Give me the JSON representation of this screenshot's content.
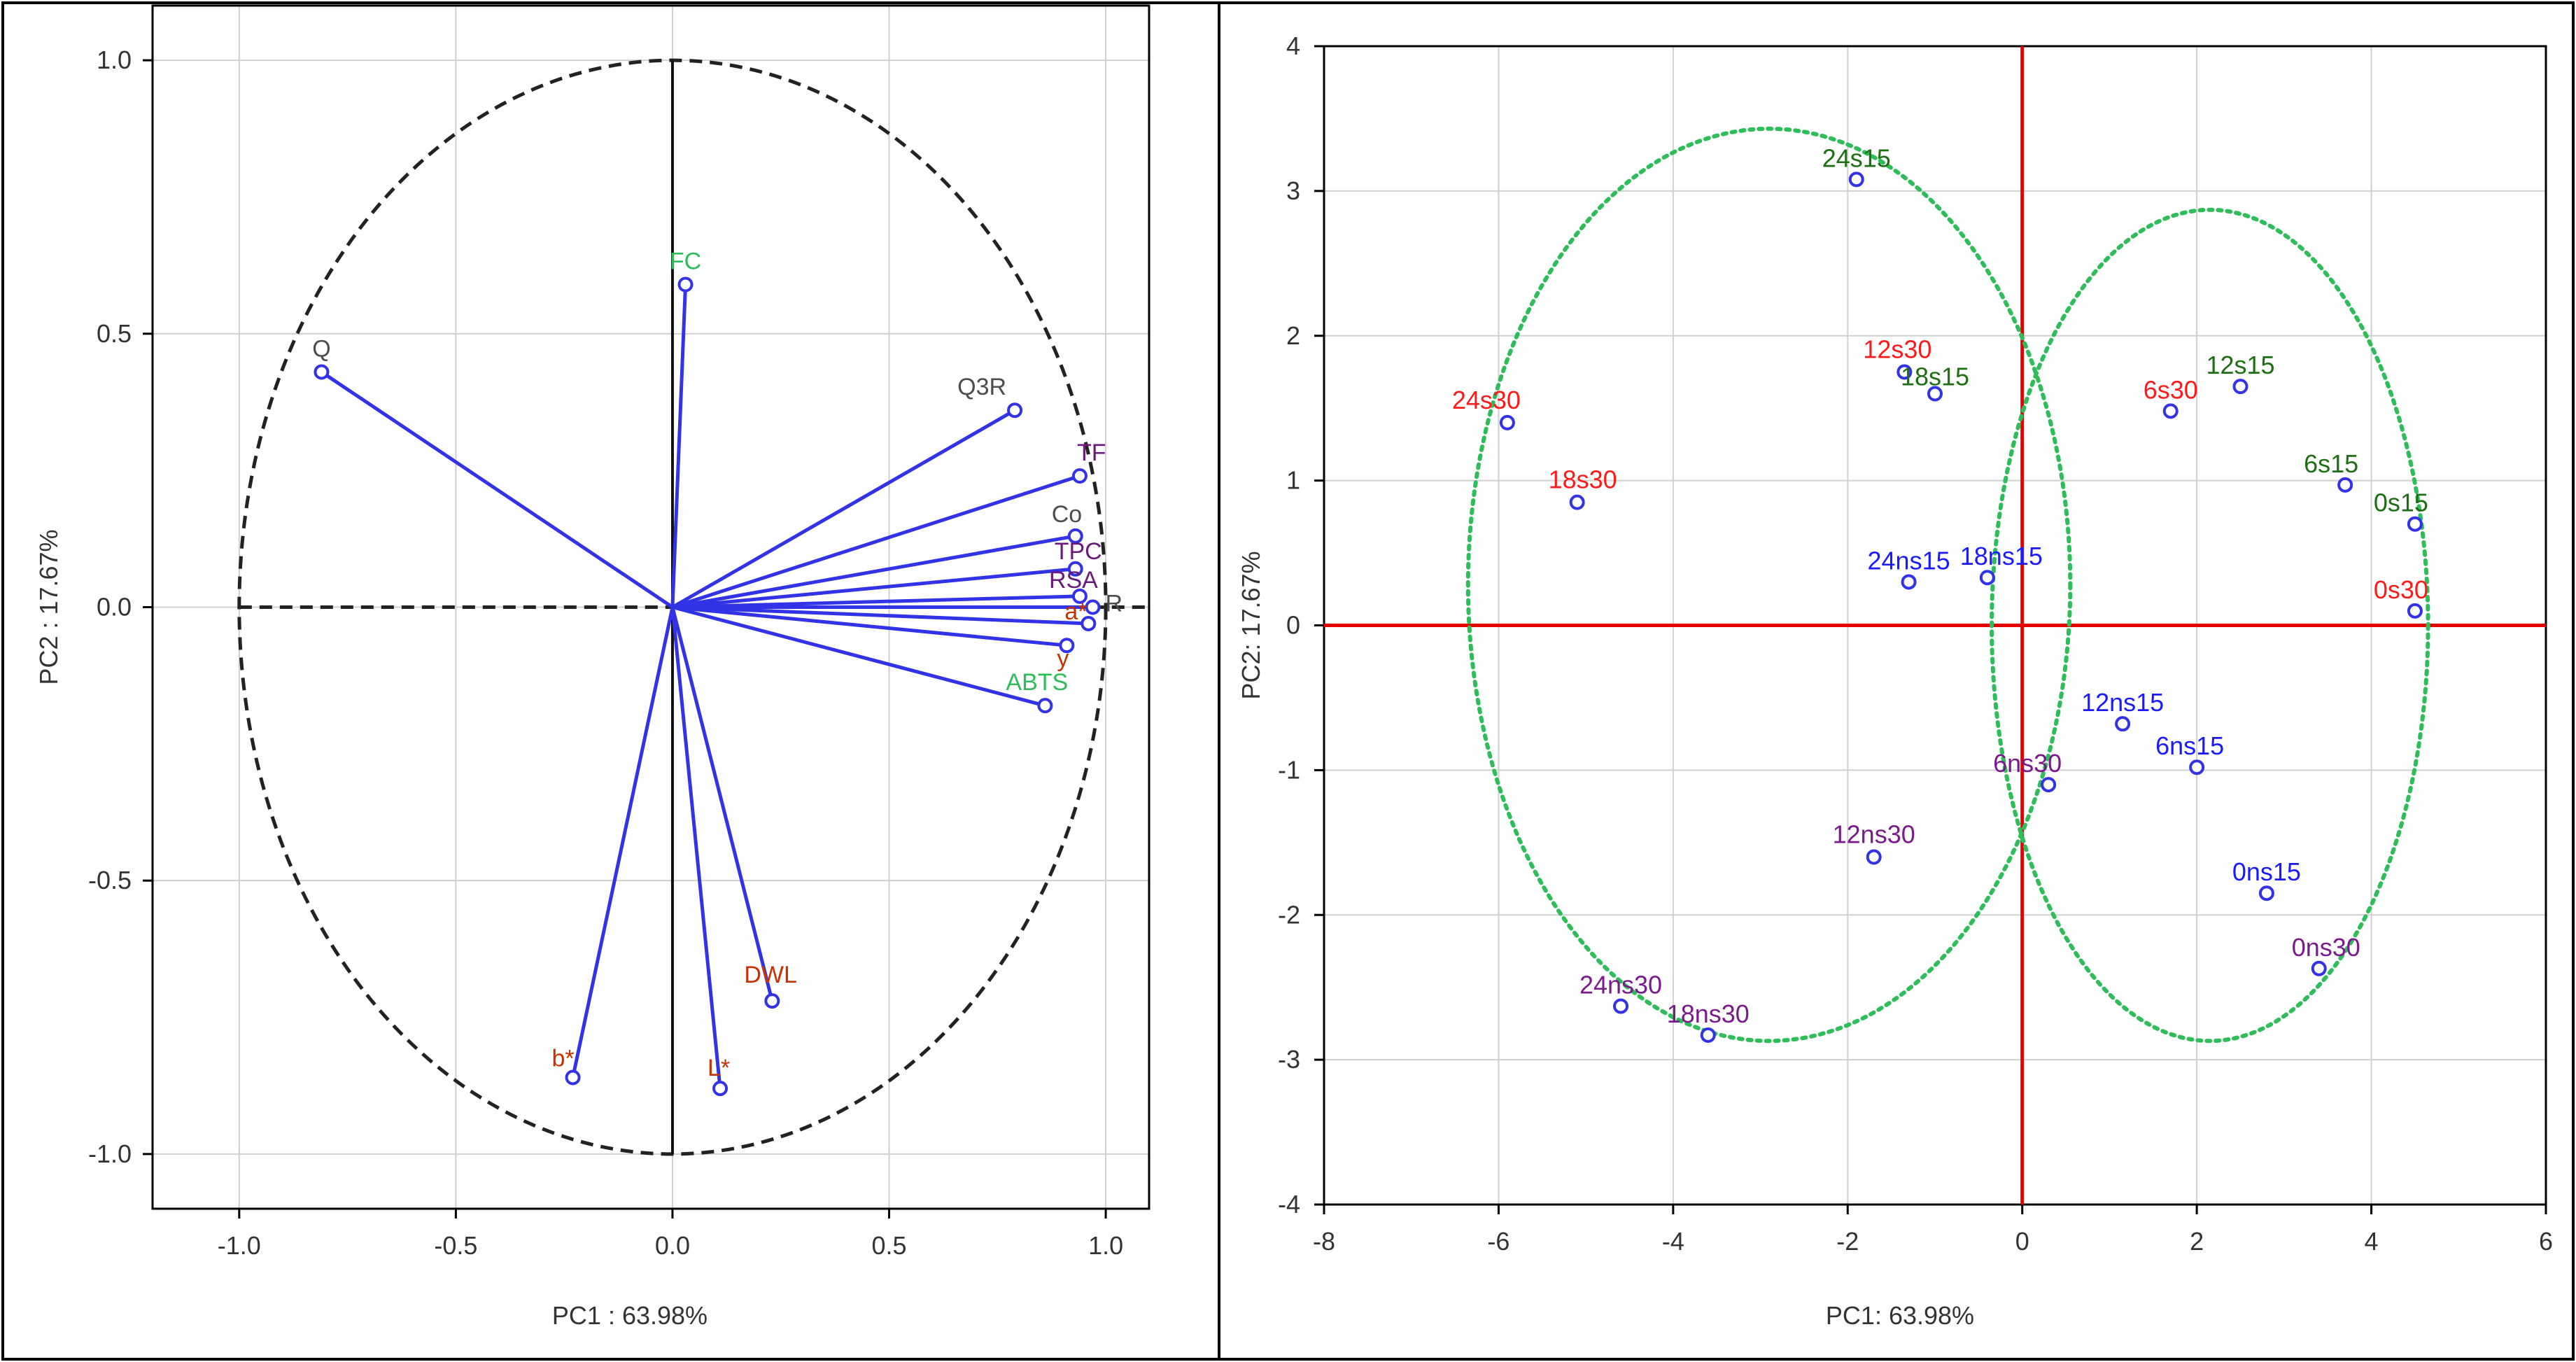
{
  "chart_data": [
    {
      "type": "scatter",
      "subtype": "pca-loading-circle",
      "xlabel": "PC1 : 63.98%",
      "ylabel": "PC2 : 17.67%",
      "xlim": [
        -1.2,
        1.1
      ],
      "ylim": [
        -1.1,
        1.1
      ],
      "xticks": [
        "-1.0",
        "-0.5",
        "0.0",
        "0.5",
        "1.0"
      ],
      "yticks": [
        "1.0",
        "0.5",
        "0.0",
        "-0.5",
        "-1.0"
      ],
      "grid": true,
      "unit_circle": true,
      "vectors": [
        {
          "label": "Q",
          "x": -0.81,
          "y": 0.43,
          "color": "#4d4d4d"
        },
        {
          "label": "FC",
          "x": 0.03,
          "y": 0.59,
          "color": "#2ebd59"
        },
        {
          "label": "Q3R",
          "x": 0.79,
          "y": 0.36,
          "color": "#4d4d4d"
        },
        {
          "label": "TF",
          "x": 0.94,
          "y": 0.24,
          "color": "#6a1a7a"
        },
        {
          "label": "Co",
          "x": 0.93,
          "y": 0.13,
          "color": "#4d4d4d"
        },
        {
          "label": "TPC",
          "x": 0.93,
          "y": 0.07,
          "color": "#6a1a7a"
        },
        {
          "label": "RSA",
          "x": 0.94,
          "y": 0.02,
          "color": "#6a1a7a"
        },
        {
          "label": "R",
          "x": 0.97,
          "y": 0.0,
          "color": "#4d4d4d"
        },
        {
          "label": "a*",
          "x": 0.96,
          "y": -0.03,
          "color": "#c83200"
        },
        {
          "label": "y",
          "x": 0.91,
          "y": -0.07,
          "color": "#c83200"
        },
        {
          "label": "ABTS",
          "x": 0.86,
          "y": -0.18,
          "color": "#2ebd59"
        },
        {
          "label": "DWL",
          "x": 0.23,
          "y": -0.72,
          "color": "#c83200"
        },
        {
          "label": "b*",
          "x": -0.23,
          "y": -0.86,
          "color": "#c83200"
        },
        {
          "label": "L*",
          "x": 0.11,
          "y": -0.88,
          "color": "#c83200"
        }
      ]
    },
    {
      "type": "scatter",
      "subtype": "pca-score-plot",
      "xlabel": "PC1: 63.98%",
      "ylabel": "PC2: 17.67%",
      "xlim": [
        -8,
        6
      ],
      "ylim": [
        -4,
        4
      ],
      "xticks": [
        "-8",
        "-6",
        "-4",
        "-2",
        "0",
        "2",
        "4",
        "6"
      ],
      "yticks": [
        "4",
        "3",
        "2",
        "1",
        "0",
        "-1",
        "-2",
        "-3",
        "-4"
      ],
      "grid": true,
      "points": [
        {
          "label": "24s15",
          "x": -1.9,
          "y": 3.08,
          "color": "#1e6e14"
        },
        {
          "label": "24s30",
          "x": -5.9,
          "y": 1.4,
          "color": "#ff1a1a"
        },
        {
          "label": "18s30",
          "x": -5.1,
          "y": 0.85,
          "color": "#ff1a1a"
        },
        {
          "label": "12s30",
          "x": -1.35,
          "y": 1.75,
          "color": "#ff1a1a"
        },
        {
          "label": "18s15",
          "x": -1.0,
          "y": 1.6,
          "color": "#1e6e14"
        },
        {
          "label": "24ns15",
          "x": -1.3,
          "y": 0.3,
          "color": "#1a1aff"
        },
        {
          "label": "18ns15",
          "x": -0.4,
          "y": 0.33,
          "color": "#1a1aff"
        },
        {
          "label": "6s30",
          "x": 1.7,
          "y": 1.48,
          "color": "#ff1a1a"
        },
        {
          "label": "12s15",
          "x": 2.5,
          "y": 1.65,
          "color": "#1e6e14"
        },
        {
          "label": "6s15",
          "x": 3.7,
          "y": 0.97,
          "color": "#1e6e14"
        },
        {
          "label": "0s15",
          "x": 4.5,
          "y": 0.7,
          "color": "#1e6e14"
        },
        {
          "label": "0s30",
          "x": 4.5,
          "y": 0.1,
          "color": "#ff1a1a"
        },
        {
          "label": "12ns15",
          "x": 1.15,
          "y": -0.68,
          "color": "#1a1aff"
        },
        {
          "label": "6ns15",
          "x": 2.0,
          "y": -0.98,
          "color": "#1a1aff"
        },
        {
          "label": "6ns30",
          "x": 0.3,
          "y": -1.1,
          "color": "#7a1a8c"
        },
        {
          "label": "12ns30",
          "x": -1.7,
          "y": -1.6,
          "color": "#7a1a8c"
        },
        {
          "label": "0ns15",
          "x": 2.8,
          "y": -1.85,
          "color": "#1a1aff"
        },
        {
          "label": "0ns30",
          "x": 3.4,
          "y": -2.37,
          "color": "#7a1a8c"
        },
        {
          "label": "24ns30",
          "x": -4.6,
          "y": -2.63,
          "color": "#7a1a8c"
        },
        {
          "label": "18ns30",
          "x": -3.6,
          "y": -2.83,
          "color": "#7a1a8c"
        }
      ],
      "ellipses": [
        {
          "cx": -2.9,
          "cy": 0.28,
          "rx": 3.45,
          "ry": 3.15,
          "color": "#2ebd59"
        },
        {
          "cx": 2.15,
          "cy": 0.0,
          "rx": 2.5,
          "ry": 2.87,
          "color": "#2ebd59"
        }
      ],
      "reference_lines": {
        "x": 0,
        "y": 0,
        "color": "#e60000"
      }
    }
  ]
}
